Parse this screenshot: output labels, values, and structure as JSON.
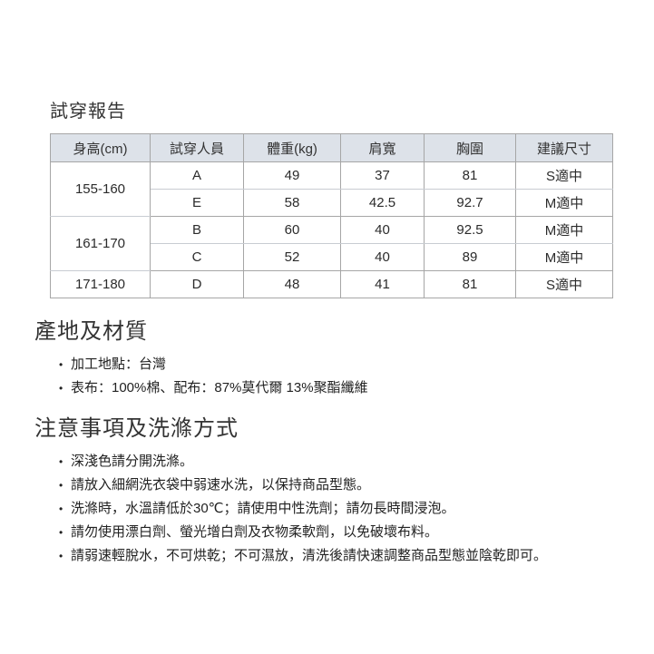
{
  "colors": {
    "table_header_bg": "#dde2e9",
    "table_border": "#a6a6a6",
    "table_border_light": "#c8ccd2",
    "text": "#333333",
    "background": "#ffffff"
  },
  "fitting_report": {
    "title": "試穿報告",
    "table": {
      "headers": [
        "身高(cm)",
        "試穿人員",
        "體重(kg)",
        "肩寬",
        "胸圍",
        "建議尺寸"
      ],
      "groups": [
        {
          "height": "155-160",
          "members": [
            {
              "person": "A",
              "weight": "49",
              "shoulder": "37",
              "chest": "81",
              "size": "S適中"
            },
            {
              "person": "E",
              "weight": "58",
              "shoulder": "42.5",
              "chest": "92.7",
              "size": "M適中"
            }
          ]
        },
        {
          "height": "161-170",
          "members": [
            {
              "person": "B",
              "weight": "60",
              "shoulder": "40",
              "chest": "92.5",
              "size": "M適中"
            },
            {
              "person": "C",
              "weight": "52",
              "shoulder": "40",
              "chest": "89",
              "size": "M適中"
            }
          ]
        },
        {
          "height": "171-180",
          "members": [
            {
              "person": "D",
              "weight": "48",
              "shoulder": "41",
              "chest": "81",
              "size": "S適中"
            }
          ]
        }
      ]
    }
  },
  "origin_material": {
    "heading": "產地及材質",
    "items": [
      "加工地點：台灣",
      "表布：100%棉、配布：87%莫代爾 13%聚酯纖維"
    ]
  },
  "care_instructions": {
    "heading": "注意事項及洗滌方式",
    "items": [
      "深淺色請分開洗滌。",
      "請放入細網洗衣袋中弱速水洗，以保持商品型態。",
      "洗滌時，水溫請低於30℃；請使用中性洗劑；請勿長時間浸泡。",
      "請勿使用漂白劑、螢光增白劑及衣物柔軟劑，以免破壞布料。",
      "請弱速輕脫水，不可烘乾；不可濕放，清洗後請快速調整商品型態並陰乾即可。"
    ]
  }
}
